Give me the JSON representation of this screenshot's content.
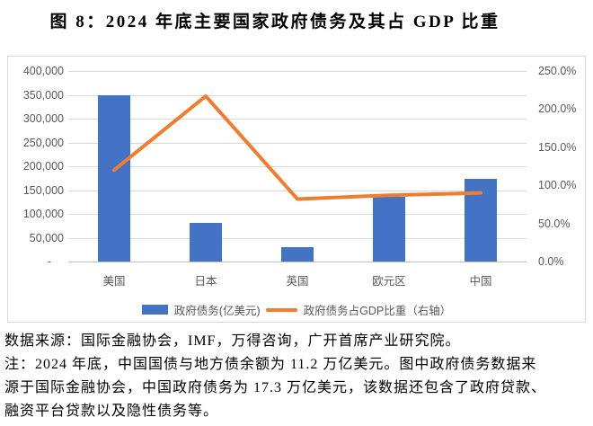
{
  "title": "图 8：2024 年底主要国家政府债务及其占 GDP 比重",
  "chart_data": {
    "type": "combo_bar_line",
    "title": "图 8：2024 年底主要国家政府债务及其占 GDP 比重",
    "categories": [
      "美国",
      "日本",
      "英国",
      "欧元区",
      "中国"
    ],
    "series": [
      {
        "name": "政府债务(亿美元)",
        "type": "bar",
        "axis": "left",
        "color": "#4472c4",
        "values": [
          350000,
          82000,
          30000,
          135000,
          173000
        ]
      },
      {
        "name": "政府债务占GDP比重（右轴）",
        "type": "line",
        "axis": "right",
        "color": "#ed7d31",
        "values": [
          120.0,
          217.0,
          82.0,
          87.0,
          90.0
        ]
      }
    ],
    "left_axis": {
      "min": 0,
      "max": 400000,
      "tick_step": 50000,
      "tick_labels": [
        "400,000",
        "350,000",
        "300,000",
        "250,000",
        "200,000",
        "150,000",
        "100,000",
        "50,000",
        "-"
      ]
    },
    "right_axis": {
      "min": 0,
      "max": 250,
      "tick_step": 50,
      "tick_labels": [
        "250.0%",
        "200.0%",
        "150.0%",
        "100.0%",
        "50.0%",
        "0.0%"
      ]
    },
    "grid": true,
    "legend_position": "bottom",
    "colors": {
      "gridline": "#d9d9d9",
      "axis_line": "#bfbfbf",
      "axis_text": "#595959",
      "chart_border": "#d9d9d9"
    }
  },
  "footer": {
    "source_line": "数据来源：国际金融协会，IMF，万得咨询，广开首席产业研究院。",
    "note_lines": [
      "注：2024 年底，中国国债与地方债余额为 11.2 万亿美元。图中政府债务数据来",
      "源于国际金融协会，中国政府债务为 17.3 万亿美元，该数据还包含了政府贷款、",
      "融资平台贷款以及隐性债务等。"
    ]
  }
}
